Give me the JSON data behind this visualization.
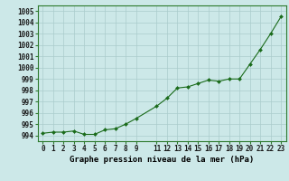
{
  "x_plot": [
    0,
    1,
    2,
    3,
    4,
    5,
    6,
    7,
    8,
    9,
    11,
    12,
    13,
    14,
    15,
    16,
    17,
    18,
    19,
    20,
    21,
    22,
    23
  ],
  "y_plot": [
    994.2,
    994.3,
    994.3,
    994.4,
    994.1,
    994.1,
    994.5,
    994.6,
    995.0,
    995.5,
    996.6,
    997.3,
    998.2,
    998.3,
    998.6,
    998.9,
    998.8,
    999.0,
    999.0,
    1000.3,
    1001.6,
    1003.0,
    1004.5
  ],
  "ylim": [
    993.5,
    1005.5
  ],
  "xlim": [
    -0.5,
    23.5
  ],
  "yticks": [
    994,
    995,
    996,
    997,
    998,
    999,
    1000,
    1001,
    1002,
    1003,
    1004,
    1005
  ],
  "xticks": [
    0,
    1,
    2,
    3,
    4,
    5,
    6,
    7,
    8,
    9,
    11,
    12,
    13,
    14,
    15,
    16,
    17,
    18,
    19,
    20,
    21,
    22,
    23
  ],
  "xtick_labels": [
    "0",
    "1",
    "2",
    "3",
    "4",
    "5",
    "6",
    "7",
    "8",
    "9",
    "11",
    "12",
    "13",
    "14",
    "15",
    "16",
    "17",
    "18",
    "19",
    "20",
    "21",
    "22",
    "23"
  ],
  "line_color": "#1a6b1a",
  "marker_color": "#1a6b1a",
  "bg_color": "#cce8e8",
  "grid_color": "#aacccc",
  "xlabel": "Graphe pression niveau de la mer (hPa)",
  "tick_fontsize": 5.5,
  "xlabel_fontsize": 6.5
}
